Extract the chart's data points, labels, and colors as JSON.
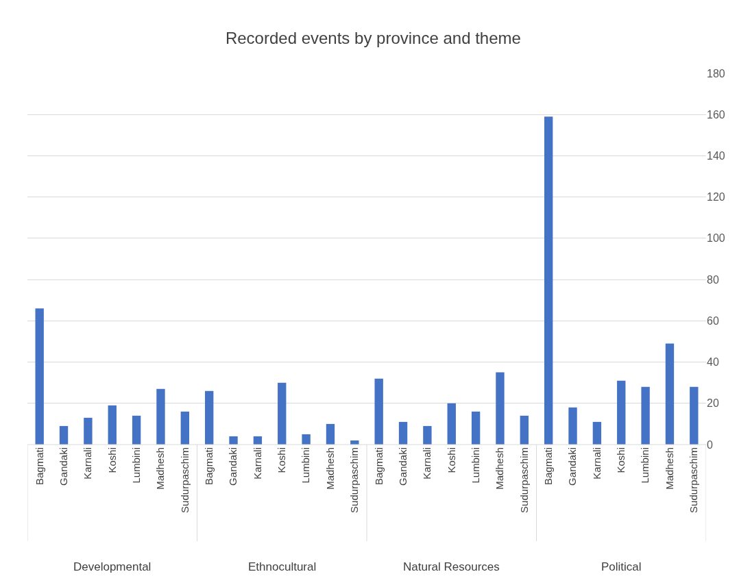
{
  "chart_data": {
    "type": "bar",
    "title": "Recorded events by province and theme",
    "categories": [
      "Bagmati",
      "Gandaki",
      "Karnali",
      "Koshi",
      "Lumbini",
      "Madhesh",
      "Sudurpaschim",
      "Bagmati",
      "Gandaki",
      "Karnali",
      "Koshi",
      "Lumbini",
      "Madhesh",
      "Sudurpaschim",
      "Bagmati",
      "Gandaki",
      "Karnali",
      "Koshi",
      "Lumbini",
      "Madhesh",
      "Sudurpaschim",
      "Bagmati",
      "Gandaki",
      "Karnali",
      "Koshi",
      "Lumbini",
      "Madhesh",
      "Sudurpaschim"
    ],
    "values": [
      66,
      9,
      13,
      19,
      14,
      27,
      16,
      26,
      4,
      4,
      30,
      5,
      10,
      2,
      32,
      11,
      9,
      20,
      16,
      35,
      14,
      159,
      18,
      11,
      31,
      28,
      49,
      28
    ],
    "color": "#4472c4",
    "annotations": [
      "Developmental",
      "Ethnocultural",
      "Natural Resources",
      "Political"
    ],
    "ylim": [
      0,
      180
    ],
    "yticks": [
      0,
      20,
      40,
      60,
      80,
      100,
      120,
      140,
      160,
      180
    ],
    "grid": "y",
    "legend": false
  }
}
